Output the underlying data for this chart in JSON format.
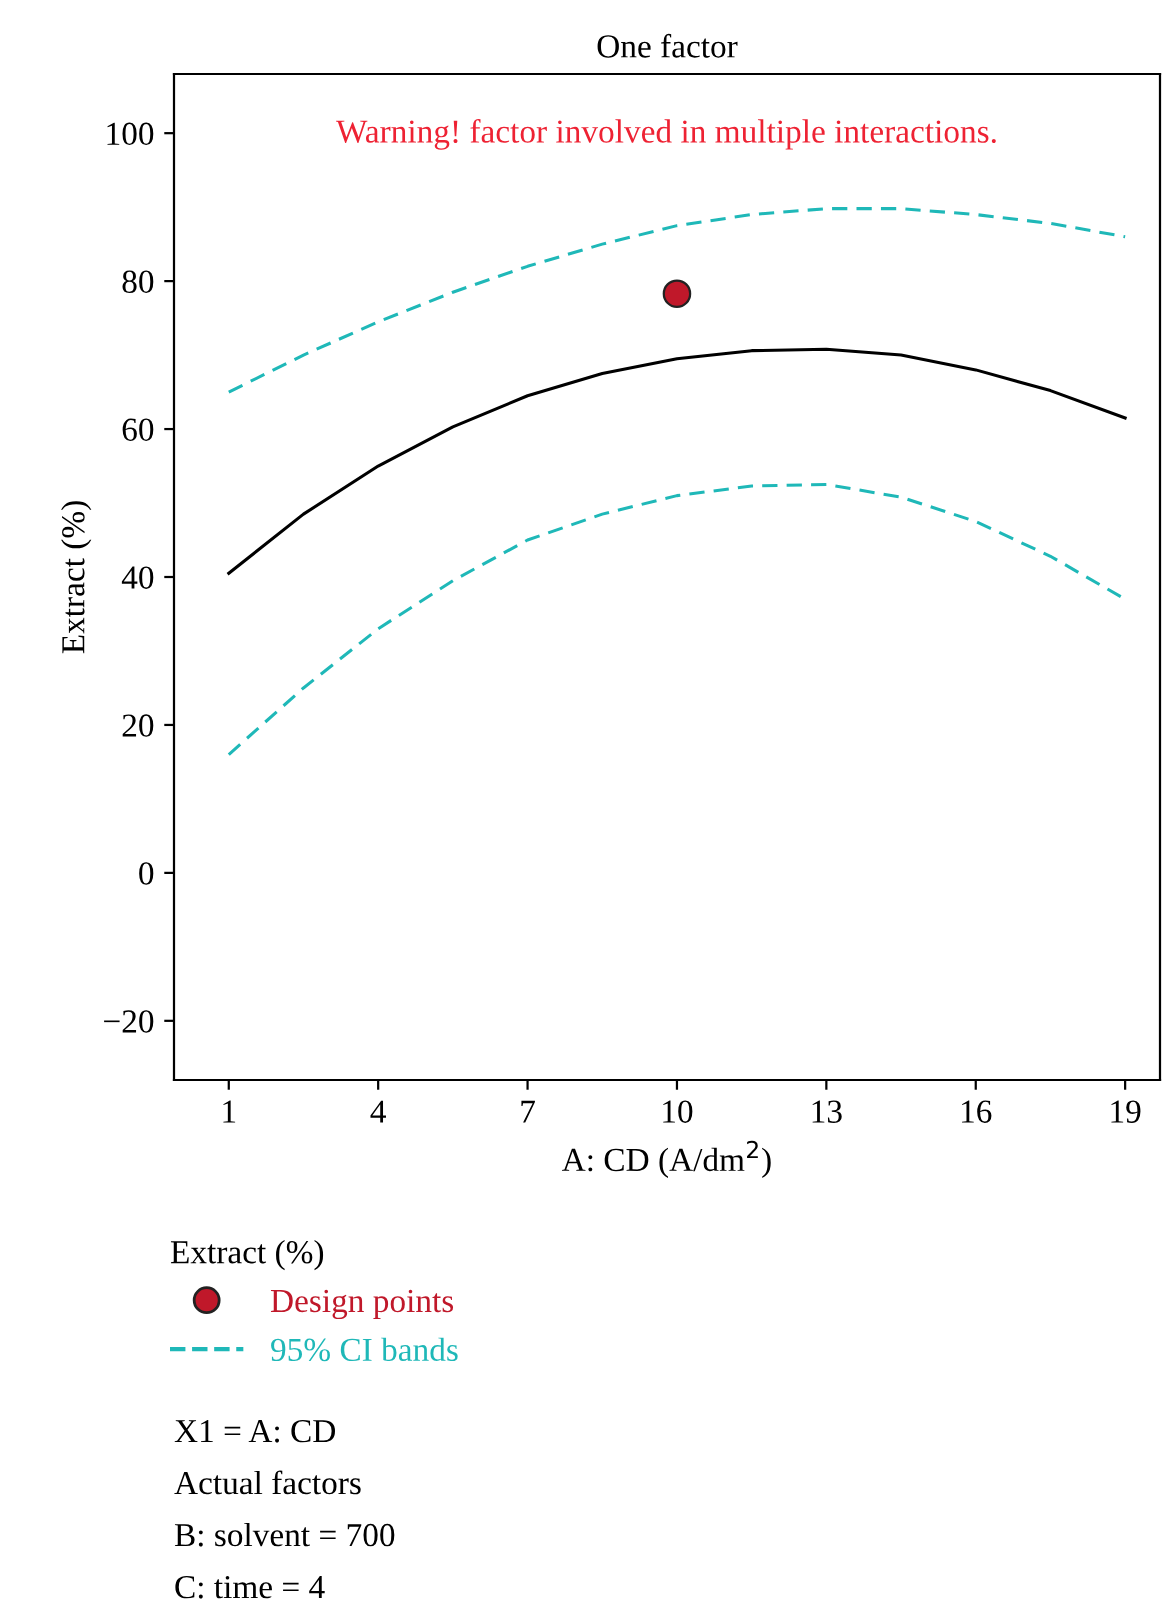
{
  "chart_data": {
    "type": "line",
    "title": "One factor",
    "xlabel": "A: CD (A/dm$^{2}$)",
    "ylabel": "Extract (%)",
    "legend_title": "Extract (%)",
    "x": [
      1,
      2.5,
      4,
      5.5,
      7,
      8.5,
      10,
      11.5,
      13,
      14.5,
      16,
      17.5,
      19
    ],
    "xlim": [
      -0.1,
      19.7
    ],
    "ylim": [
      -28,
      108
    ],
    "xticks": [
      1,
      4,
      7,
      10,
      13,
      16,
      19
    ],
    "yticks": [
      {
        "value": -20,
        "label": "−20"
      },
      0,
      20,
      40,
      60,
      80,
      100
    ],
    "grid": false,
    "legend": "bottom",
    "marker": "none",
    "series": [
      {
        "color": "#000000",
        "line_style": "solid",
        "values": [
          40.5,
          48.5,
          55,
          60.3,
          64.5,
          67.5,
          69.5,
          70.6,
          70.8,
          70,
          68,
          65.2,
          61.5
        ]
      },
      {
        "name": "95% CI bands",
        "color": "#1fb8b8",
        "line_style": "dashed",
        "values": [
          65,
          70,
          74.5,
          78.5,
          82,
          85,
          87.5,
          89,
          89.8,
          89.8,
          89,
          87.8,
          86
        ]
      },
      {
        "color": "#1fb8b8",
        "line_style": "dashed",
        "values": [
          16,
          25,
          33,
          39.5,
          45,
          48.5,
          51,
          52.3,
          52.5,
          50.8,
          47.5,
          42.8,
          37
        ]
      },
      {
        "type": "scatter",
        "name": "Design points",
        "color": "#c0182a",
        "marker": "circle",
        "x": [
          10
        ],
        "values": [
          78.3
        ]
      }
    ],
    "annotations": [
      "Warning! factor involved in multiple interactions.",
      "X1 = A: CD",
      "Actual factors",
      "B: solvent = 700",
      "C: time = 4"
    ]
  }
}
